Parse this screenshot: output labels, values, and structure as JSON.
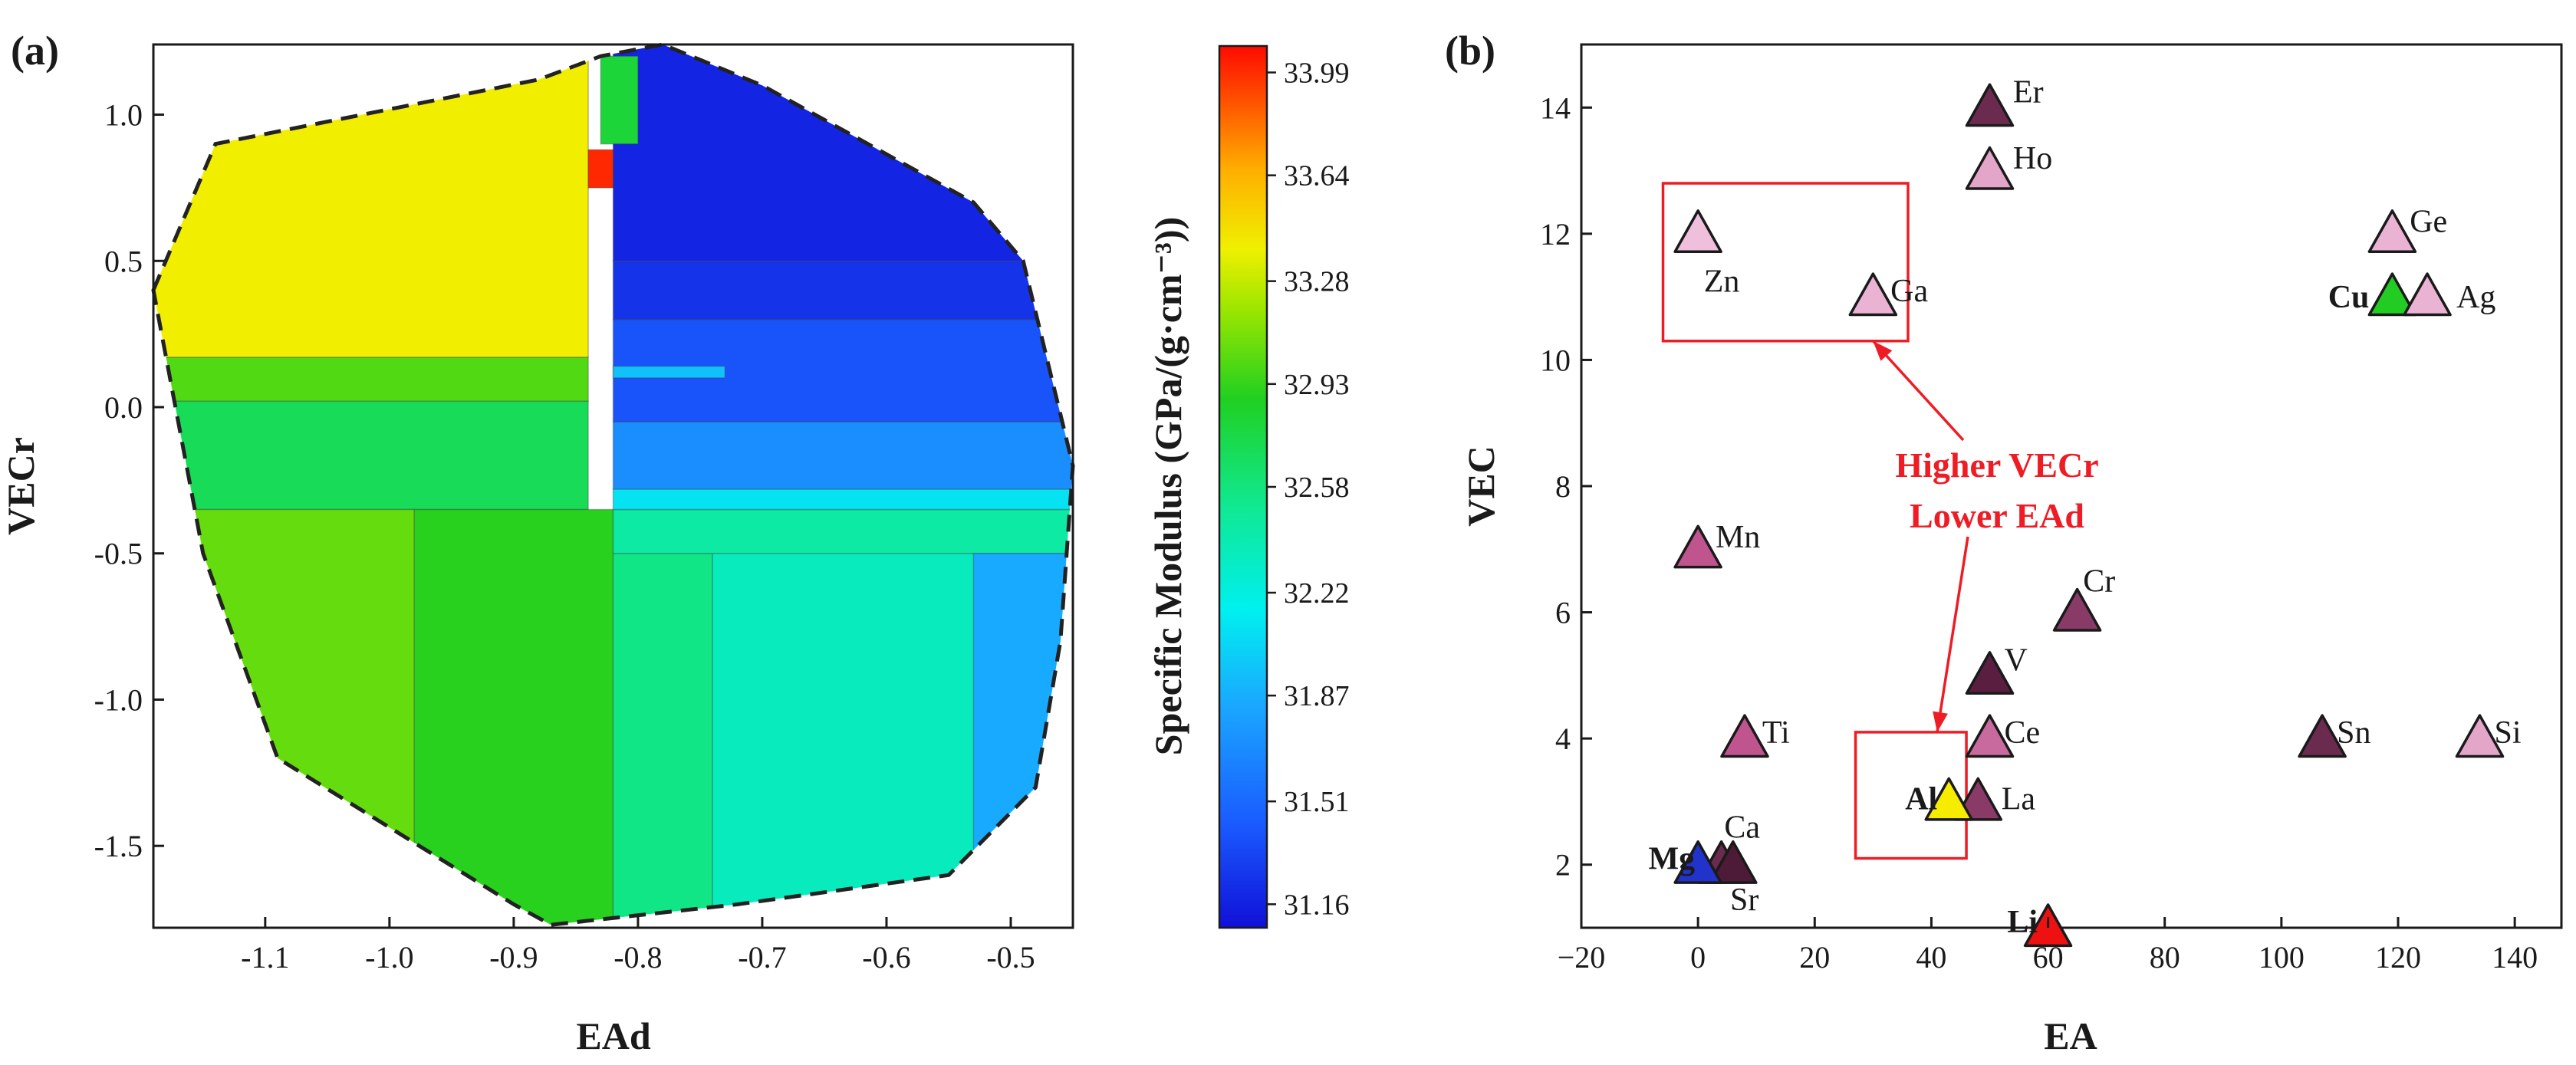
{
  "chart_data": [
    {
      "panel": "(a)",
      "type": "heatmap",
      "xlabel": "EAd",
      "ylabel": "VECr",
      "xlim": [
        -1.19,
        -0.45
      ],
      "ylim": [
        -1.78,
        1.24
      ],
      "xticks": [
        "-1.1",
        "-1.0",
        "-0.9",
        "-0.8",
        "-0.7",
        "-0.6",
        "-0.5"
      ],
      "xtick_values": [
        -1.1,
        -1.0,
        -0.9,
        -0.8,
        -0.7,
        -0.6,
        -0.5
      ],
      "yticks": [
        "1.0",
        "0.5",
        "0.0",
        "-0.5",
        "-1.0",
        "-1.5"
      ],
      "ytick_values": [
        1.0,
        0.5,
        0.0,
        -0.5,
        -1.0,
        -1.5
      ],
      "hull": [
        [
          -1.19,
          0.4
        ],
        [
          -1.14,
          0.9
        ],
        [
          -0.88,
          1.12
        ],
        [
          -0.83,
          1.2
        ],
        [
          -0.78,
          1.24
        ],
        [
          -0.7,
          1.1
        ],
        [
          -0.53,
          0.7
        ],
        [
          -0.49,
          0.5
        ],
        [
          -0.45,
          -0.2
        ],
        [
          -0.46,
          -0.8
        ],
        [
          -0.48,
          -1.3
        ],
        [
          -0.55,
          -1.6
        ],
        [
          -0.72,
          -1.7
        ],
        [
          -0.87,
          -1.77
        ],
        [
          -0.9,
          -1.7
        ],
        [
          -1.09,
          -1.2
        ],
        [
          -1.15,
          -0.5
        ],
        [
          -1.19,
          0.4
        ]
      ],
      "regions": [
        {
          "x": [
            -1.19,
            -0.84
          ],
          "y": [
            0.17,
            1.24
          ],
          "value": 33.4
        },
        {
          "x": [
            -1.19,
            -0.84
          ],
          "y": [
            0.02,
            0.17
          ],
          "value": 33.0
        },
        {
          "x": [
            -1.19,
            -0.84
          ],
          "y": [
            -0.35,
            0.02
          ],
          "value": 32.7
        },
        {
          "x": [
            -1.19,
            -0.98
          ],
          "y": [
            -1.78,
            -0.35
          ],
          "value": 33.05
        },
        {
          "x": [
            -0.98,
            -0.82
          ],
          "y": [
            -1.78,
            -0.35
          ],
          "value": 32.9
        },
        {
          "x": [
            -0.82,
            -0.74
          ],
          "y": [
            -1.78,
            -0.5
          ],
          "value": 32.55
        },
        {
          "x": [
            -0.74,
            -0.45
          ],
          "y": [
            -1.78,
            -0.5
          ],
          "value": 32.35
        },
        {
          "x": [
            -0.82,
            -0.45
          ],
          "y": [
            -0.5,
            -0.35
          ],
          "value": 32.45
        },
        {
          "x": [
            -0.82,
            -0.45
          ],
          "y": [
            -0.35,
            -0.28
          ],
          "value": 32.1
        },
        {
          "x": [
            -0.53,
            -0.45
          ],
          "y": [
            -1.78,
            -0.5
          ],
          "value": 31.85
        },
        {
          "x": [
            -0.82,
            -0.45
          ],
          "y": [
            -0.28,
            -0.05
          ],
          "value": 31.7
        },
        {
          "x": [
            -0.82,
            -0.45
          ],
          "y": [
            -0.05,
            0.3
          ],
          "value": 31.4
        },
        {
          "x": [
            -0.82,
            -0.45
          ],
          "y": [
            0.3,
            0.5
          ],
          "value": 31.25
        },
        {
          "x": [
            -0.82,
            -0.45
          ],
          "y": [
            0.5,
            1.24
          ],
          "value": 31.18
        },
        {
          "x": [
            -0.82,
            -0.73
          ],
          "y": [
            0.1,
            0.14
          ],
          "value": 31.95
        },
        {
          "x": [
            -0.84,
            -0.82
          ],
          "y": [
            0.75,
            0.88
          ],
          "value": 34.0
        },
        {
          "x": [
            -0.83,
            -0.8
          ],
          "y": [
            0.9,
            1.2
          ],
          "value": 32.8
        }
      ],
      "colorbar": {
        "label": "Specific Modulus (GPa/(g·cm⁻³))",
        "range": [
          31.08,
          34.08
        ],
        "ticks": [
          "33.99",
          "33.64",
          "33.28",
          "32.93",
          "32.58",
          "32.22",
          "31.87",
          "31.51",
          "31.16"
        ],
        "tick_values": [
          33.99,
          33.64,
          33.28,
          32.93,
          32.58,
          32.22,
          31.87,
          31.51,
          31.16
        ]
      }
    },
    {
      "panel": "(b)",
      "type": "scatter",
      "xlabel": "EA",
      "ylabel": "VEC",
      "xlim": [
        -20,
        148
      ],
      "ylim": [
        1,
        15
      ],
      "xticks": [
        "−20",
        "0",
        "20",
        "40",
        "60",
        "80",
        "100",
        "120",
        "140"
      ],
      "xtick_values": [
        -20,
        0,
        20,
        40,
        60,
        80,
        100,
        120,
        140
      ],
      "yticks": [
        "2",
        "4",
        "6",
        "8",
        "10",
        "12",
        "14"
      ],
      "ytick_values": [
        2,
        4,
        6,
        8,
        10,
        12,
        14
      ],
      "points": [
        {
          "label": "Er",
          "x": 50,
          "y": 14,
          "color": "#6b2b4e",
          "bold": false,
          "lx": 4,
          "ly": 0.25
        },
        {
          "label": "Ho",
          "x": 50,
          "y": 13,
          "color": "#e3a6c9",
          "bold": false,
          "lx": 4,
          "ly": 0.2
        },
        {
          "label": "Zn",
          "x": 0,
          "y": 12,
          "color": "#f0bfdc",
          "bold": false,
          "lx": 1,
          "ly": -0.75
        },
        {
          "label": "Ga",
          "x": 30,
          "y": 11,
          "color": "#ebb3d3",
          "bold": false,
          "lx": 3,
          "ly": 0.1
        },
        {
          "label": "Ge",
          "x": 119,
          "y": 12,
          "color": "#ebb3d3",
          "bold": false,
          "lx": 3,
          "ly": 0.2
        },
        {
          "label": "Cu",
          "x": 119,
          "y": 11,
          "color": "#22cc22",
          "bold": true,
          "lx": -11,
          "ly": 0.0
        },
        {
          "label": "Ag",
          "x": 125,
          "y": 11,
          "color": "#ebb3d3",
          "bold": false,
          "lx": 5,
          "ly": 0.0
        },
        {
          "label": "Mn",
          "x": 0,
          "y": 7,
          "color": "#c0548e",
          "bold": false,
          "lx": 3,
          "ly": 0.2
        },
        {
          "label": "Cr",
          "x": 65,
          "y": 6,
          "color": "#8a3a66",
          "bold": false,
          "lx": 1,
          "ly": 0.5
        },
        {
          "label": "V",
          "x": 50,
          "y": 5,
          "color": "#5a1f40",
          "bold": false,
          "lx": 2.5,
          "ly": 0.25
        },
        {
          "label": "Ti",
          "x": 8,
          "y": 4,
          "color": "#c0548e",
          "bold": false,
          "lx": 3,
          "ly": 0.1
        },
        {
          "label": "Ce",
          "x": 50,
          "y": 4,
          "color": "#c86a9e",
          "bold": false,
          "lx": 2.5,
          "ly": 0.1
        },
        {
          "label": "La",
          "x": 48,
          "y": 3,
          "color": "#8a3a66",
          "bold": false,
          "lx": 4,
          "ly": 0.05
        },
        {
          "label": "Al",
          "x": 43,
          "y": 3,
          "color": "#f5ec00",
          "bold": true,
          "lx": -7.5,
          "ly": 0.05
        },
        {
          "label": "Sn",
          "x": 107,
          "y": 4,
          "color": "#6b2b4e",
          "bold": false,
          "lx": 2.5,
          "ly": 0.1
        },
        {
          "label": "Si",
          "x": 134,
          "y": 4,
          "color": "#e3a6c9",
          "bold": false,
          "lx": 2.5,
          "ly": 0.1
        },
        {
          "label": "Ca",
          "x": 4,
          "y": 2,
          "color": "#6b2b4e",
          "bold": false,
          "lx": 0.5,
          "ly": 0.6
        },
        {
          "label": "Sr",
          "x": 6,
          "y": 2,
          "color": "#4d1a38",
          "bold": false,
          "lx": -0.5,
          "ly": -0.55
        },
        {
          "label": "Mg",
          "x": 0,
          "y": 2,
          "color": "#2233cc",
          "bold": true,
          "lx": -8.5,
          "ly": 0.1
        },
        {
          "label": "Li",
          "x": 60,
          "y": 1,
          "color": "#ee1111",
          "bold": true,
          "lx": -7,
          "ly": 0.1
        }
      ],
      "boxes": [
        {
          "x": [
            -6,
            36
          ],
          "y": [
            10.3,
            12.8
          ]
        },
        {
          "x": [
            27,
            46
          ],
          "y": [
            2.1,
            4.1
          ]
        }
      ],
      "annotation": {
        "lines": [
          "Higher VECr",
          "Lower EAd"
        ],
        "x": 45,
        "y": 8
      }
    }
  ],
  "colors": {
    "axis": "#1a1a1a",
    "box": "#ee1c25",
    "annotation": "#ee1c25",
    "hull": "#222222"
  }
}
